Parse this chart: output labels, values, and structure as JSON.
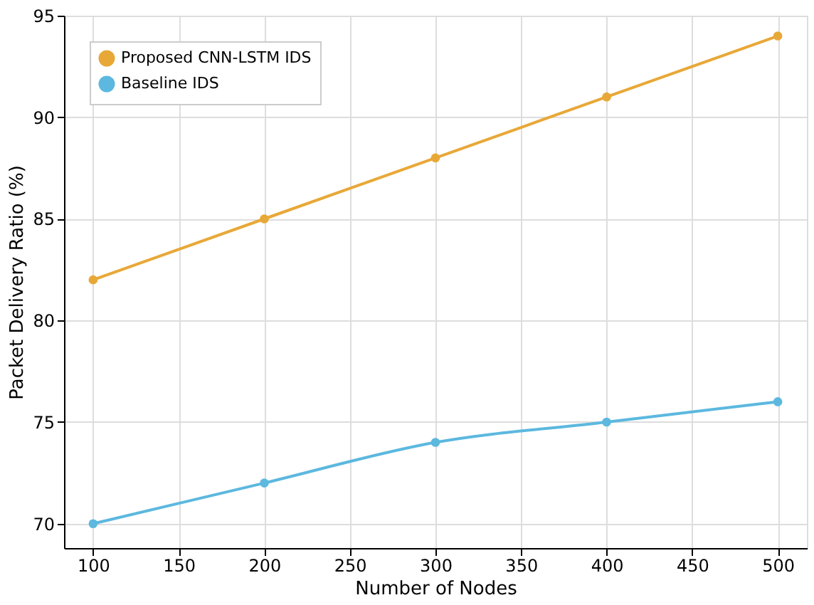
{
  "chart_data": {
    "type": "line",
    "xlabel": "Number of Nodes",
    "ylabel": "Packet Delivery Ratio (%)",
    "x": [
      100,
      200,
      300,
      400,
      500
    ],
    "series": [
      {
        "name": "Proposed CNN-LSTM IDS",
        "color": "#e8a838",
        "values": [
          82,
          85,
          88,
          91,
          94
        ]
      },
      {
        "name": "Baseline IDS",
        "color": "#5cb8df",
        "values": [
          70,
          72,
          74,
          75,
          76
        ]
      }
    ],
    "xlim": [
      83,
      517
    ],
    "xticks": [
      100,
      150,
      200,
      250,
      300,
      350,
      400,
      450,
      500
    ],
    "ylim": [
      68.8,
      95
    ],
    "yticks": [
      70,
      75,
      80,
      85,
      90,
      95
    ],
    "grid": true,
    "legend": "top left",
    "marker": "circle",
    "line_style": "solid"
  }
}
